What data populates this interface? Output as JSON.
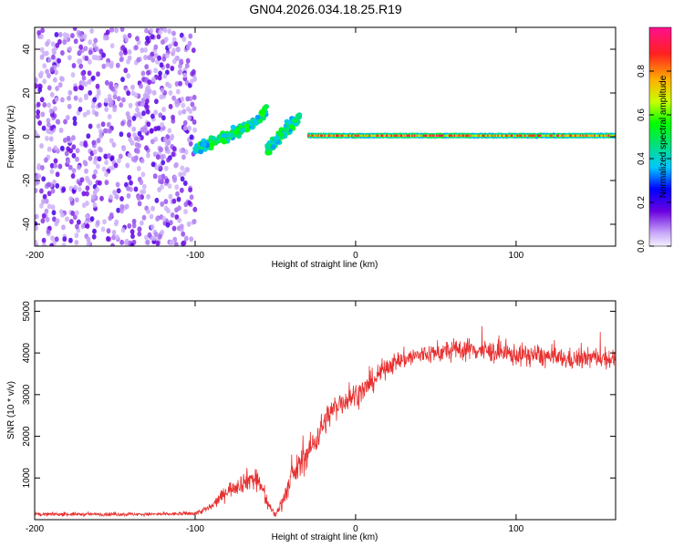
{
  "title": "GN04.2026.034.18.25.R19",
  "chart_data": [
    {
      "type": "heatmap",
      "name": "spectrogram",
      "xlabel": "Height of straight line (km)",
      "ylabel": "Frequency (Hz)",
      "xlim": [
        -200,
        162
      ],
      "ylim": [
        -50,
        50
      ],
      "xticks": [
        -200,
        -100,
        0,
        100
      ],
      "xtick_labels": [
        "-200",
        "-100",
        "0",
        "100"
      ],
      "yticks": [
        -40,
        -20,
        0,
        20,
        40
      ],
      "ytick_labels": [
        "-40",
        "-20",
        "0",
        "20",
        "40"
      ],
      "colorbar": {
        "label": "Normalized spectral amplitude",
        "range": [
          0,
          1
        ],
        "ticks": [
          0.0,
          0.2,
          0.4,
          0.6,
          0.8
        ],
        "tick_labels": [
          "0.0",
          "0.2",
          "0.4",
          "0.6",
          "0.8"
        ]
      },
      "features": [
        {
          "region": "noise",
          "x_range": [
            -200,
            -100
          ],
          "freq_range": [
            -50,
            50
          ],
          "amplitude": [
            0.05,
            0.2
          ]
        },
        {
          "region": "ascending-streak-1",
          "x": [
            -100,
            -80,
            -65,
            -55
          ],
          "freq": [
            -6,
            0,
            6,
            12
          ],
          "amplitude": 0.45
        },
        {
          "region": "ascending-streak-2",
          "x": [
            -55,
            -45,
            -35
          ],
          "freq": [
            -6,
            2,
            9
          ],
          "amplitude": 0.45
        },
        {
          "region": "carrier-line",
          "x": [
            -30,
            162
          ],
          "freq": [
            0.5,
            0.5
          ],
          "amplitude": [
            0.6,
            0.95
          ]
        }
      ]
    },
    {
      "type": "line",
      "name": "snr",
      "xlabel": "Height of straight line (km)",
      "ylabel": "SNR (10 * v/v)",
      "xlim": [
        -200,
        162
      ],
      "ylim": [
        0,
        5250
      ],
      "xticks": [
        -200,
        -100,
        0,
        100
      ],
      "xtick_labels": [
        "-200",
        "-100",
        "0",
        "100"
      ],
      "yticks": [
        1000,
        2000,
        3000,
        4000,
        5000
      ],
      "ytick_labels": [
        "1000",
        "2000",
        "3000",
        "4000",
        "5000"
      ],
      "color": "#e83030",
      "envelope": {
        "x": [
          -200,
          -120,
          -100,
          -90,
          -80,
          -70,
          -65,
          -60,
          -55,
          -50,
          -45,
          -40,
          -35,
          -30,
          -25,
          -20,
          -15,
          -10,
          -5,
          0,
          5,
          10,
          15,
          20,
          30,
          40,
          50,
          60,
          70,
          80,
          90,
          100,
          110,
          120,
          130,
          140,
          150,
          162
        ],
        "mean": [
          130,
          130,
          150,
          300,
          700,
          900,
          1000,
          900,
          400,
          100,
          500,
          1000,
          1300,
          1600,
          1900,
          2300,
          2600,
          2800,
          2900,
          3000,
          3100,
          3300,
          3500,
          3700,
          3850,
          3950,
          4000,
          4050,
          4100,
          4050,
          4000,
          3950,
          3950,
          3900,
          3850,
          3850,
          3900,
          3850
        ],
        "noise": [
          60,
          60,
          70,
          150,
          250,
          350,
          400,
          400,
          250,
          80,
          300,
          450,
          500,
          500,
          500,
          500,
          450,
          450,
          450,
          450,
          400,
          400,
          380,
          350,
          350,
          350,
          350,
          380,
          380,
          380,
          380,
          380,
          380,
          380,
          350,
          350,
          350,
          350
        ]
      }
    }
  ]
}
